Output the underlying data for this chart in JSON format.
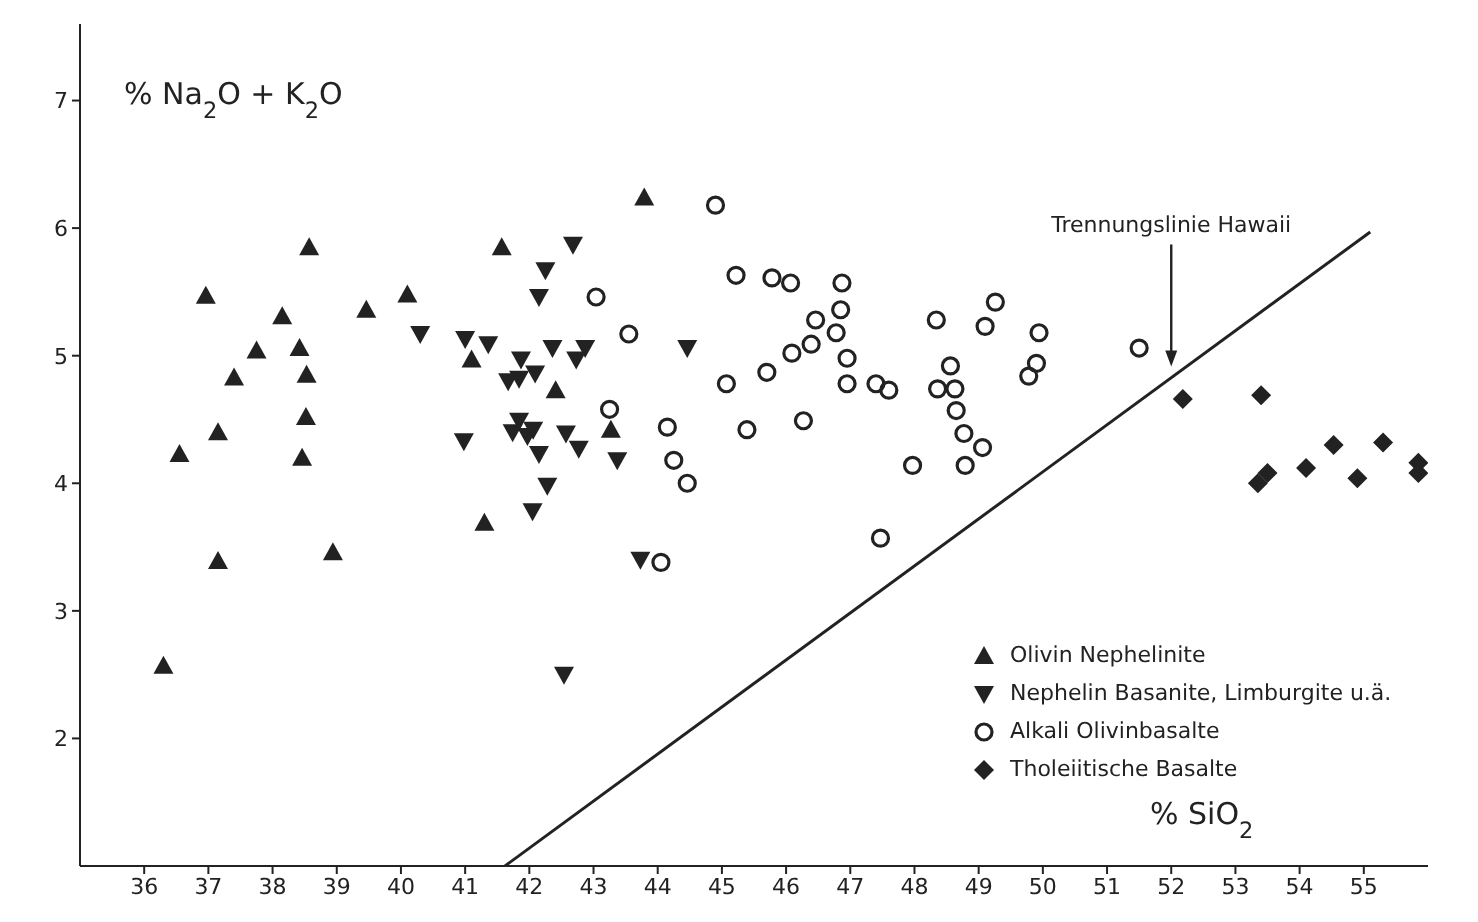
{
  "chart_data": {
    "type": "scatter",
    "xlabel": "% SiO$_{2}$",
    "ylabel": "% Na$_{2}$O + K$_{2}$O",
    "xlim": [
      35,
      56
    ],
    "ylim": [
      1,
      7.6
    ],
    "xticks": [
      36,
      37,
      38,
      39,
      40,
      41,
      42,
      43,
      44,
      45,
      46,
      47,
      48,
      49,
      50,
      51,
      52,
      53,
      54,
      55
    ],
    "yticks": [
      2,
      3,
      4,
      5,
      6,
      7
    ],
    "grid": false,
    "legend": "bottom right",
    "annotations": [
      {
        "text": "Trennungslinie Hawaii",
        "x": 52.0,
        "y": 4.9
      }
    ],
    "series": [
      {
        "name": "Olivin Nephelinite",
        "color": "#222222",
        "marker": "triangle",
        "x": [
          36.3,
          36.55,
          36.96,
          37.15,
          37.15,
          37.4,
          37.75,
          38.15,
          38.42,
          38.53,
          38.52,
          38.46,
          38.57,
          38.94,
          39.46,
          40.1,
          41.1,
          41.3,
          41.57,
          43.79,
          42.41,
          43.27
        ],
        "values": [
          2.57,
          4.23,
          5.47,
          4.4,
          3.39,
          4.83,
          5.04,
          5.31,
          5.06,
          4.85,
          4.52,
          4.2,
          5.85,
          3.46,
          5.36,
          5.48,
          4.97,
          3.69,
          5.85,
          6.24,
          4.73,
          4.42
        ]
      },
      {
        "name": "Nephelin Basanite, Limburgite u.ä.",
        "color": "#222222",
        "marker": "triangle-down",
        "x": [
          40.3,
          41.0,
          41.36,
          40.98,
          42.68,
          42.25,
          42.15,
          42.36,
          42.87,
          42.73,
          44.46,
          41.87,
          41.67,
          41.84,
          42.09,
          41.84,
          41.74,
          41.97,
          42.06,
          42.57,
          42.15,
          42.77,
          43.37,
          42.28,
          42.05,
          43.73,
          42.54
        ],
        "values": [
          5.17,
          5.13,
          5.09,
          4.33,
          5.87,
          5.67,
          5.46,
          5.06,
          5.06,
          4.97,
          5.06,
          4.97,
          4.8,
          4.82,
          4.86,
          4.49,
          4.4,
          4.37,
          4.42,
          4.39,
          4.23,
          4.27,
          4.18,
          3.98,
          3.78,
          3.4,
          2.5
        ]
      },
      {
        "name": "Alkali Olivinbasalte",
        "color": "#222222",
        "marker": "circle",
        "x": [
          44.9,
          45.22,
          43.04,
          43.55,
          45.07,
          43.25,
          44.15,
          45.39,
          44.25,
          44.46,
          44.05,
          45.78,
          46.07,
          46.87,
          46.46,
          46.85,
          46.78,
          46.39,
          46.09,
          45.7,
          46.95,
          46.95,
          47.4,
          47.6,
          48.34,
          49.1,
          49.26,
          49.94,
          49.9,
          49.78,
          48.56,
          48.36,
          48.63,
          48.65,
          48.77,
          49.06,
          48.79,
          47.97,
          46.27,
          47.47,
          51.5
        ],
        "values": [
          6.18,
          5.63,
          5.46,
          5.17,
          4.78,
          4.58,
          4.44,
          4.42,
          4.18,
          4.0,
          3.38,
          5.61,
          5.57,
          5.57,
          5.28,
          5.36,
          5.18,
          5.09,
          5.02,
          4.87,
          4.98,
          4.78,
          4.78,
          4.73,
          5.28,
          5.23,
          5.42,
          5.18,
          4.94,
          4.84,
          4.92,
          4.74,
          4.74,
          4.57,
          4.39,
          4.28,
          4.14,
          4.14,
          4.49,
          3.57,
          5.06
        ]
      },
      {
        "name": "Tholeiitische Basalte",
        "color": "#222222",
        "marker": "diamond",
        "x": [
          52.18,
          53.4,
          53.35,
          53.5,
          54.1,
          54.53,
          54.9,
          55.3,
          55.85,
          55.85
        ],
        "values": [
          4.66,
          4.69,
          4.0,
          4.08,
          4.12,
          4.3,
          4.04,
          4.32,
          4.16,
          4.08
        ]
      },
      {
        "type": "line",
        "color": "#222222",
        "marker": "none",
        "x": [
          41.62,
          55.1
        ],
        "values": [
          1,
          5.97
        ]
      }
    ]
  }
}
